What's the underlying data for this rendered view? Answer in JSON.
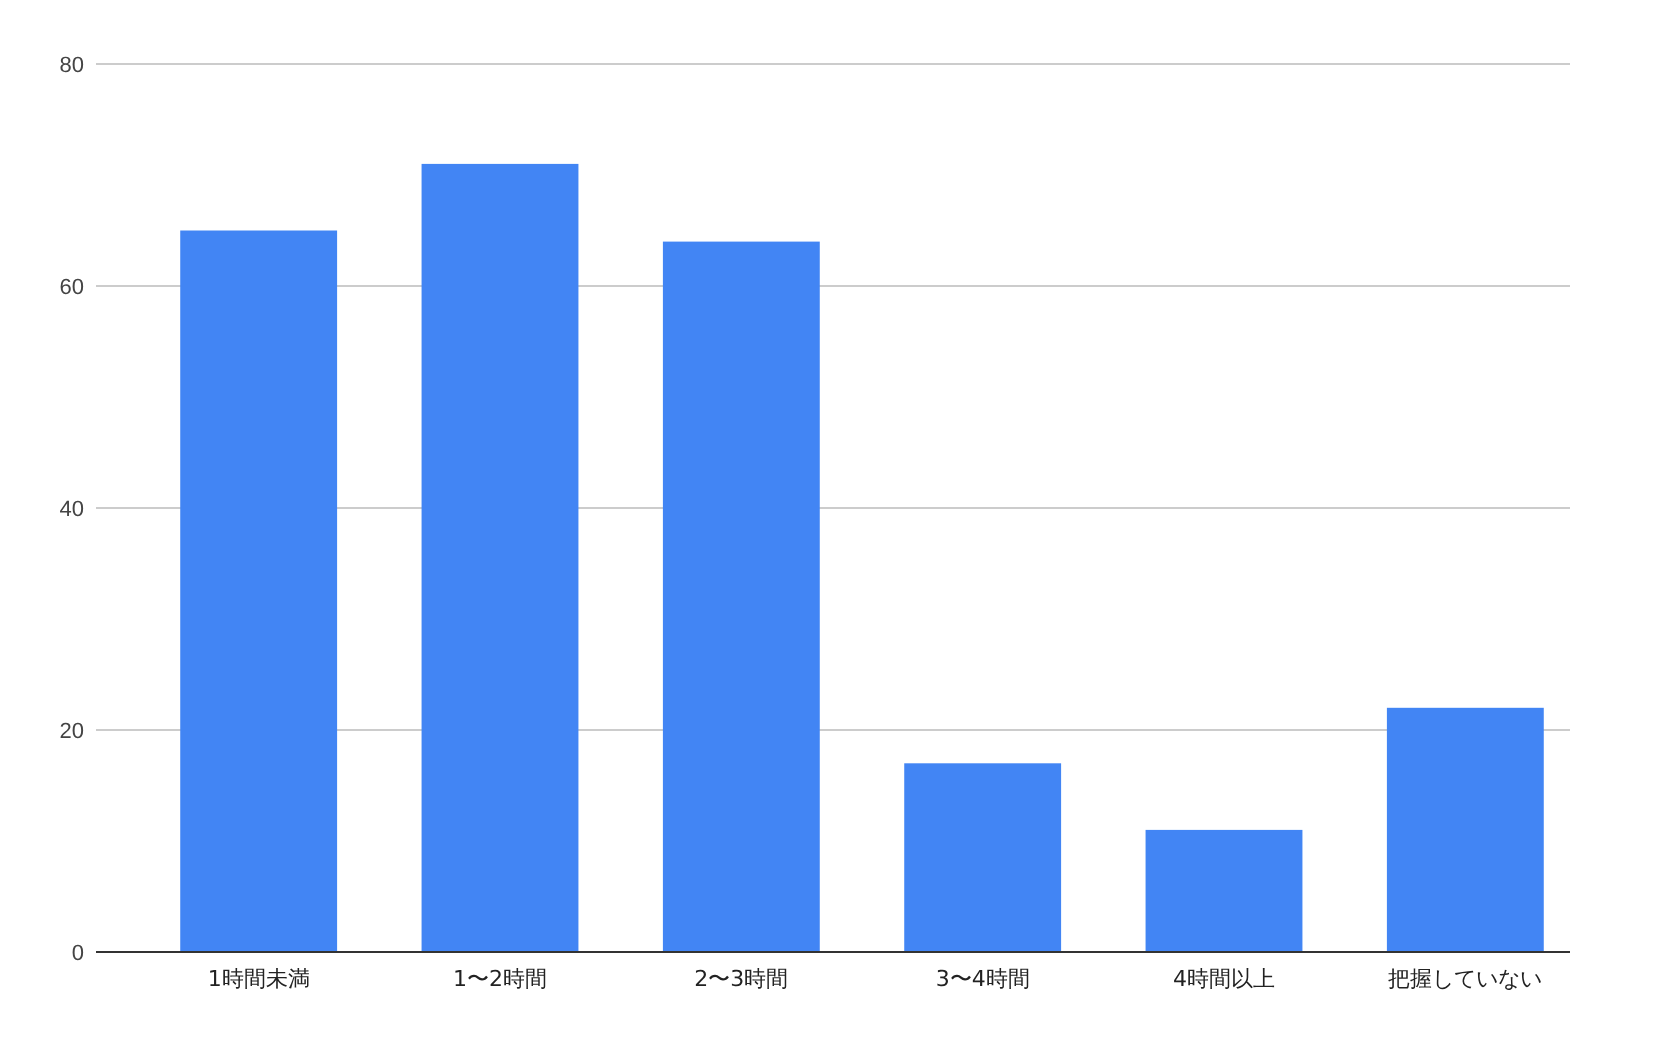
{
  "chart_data": {
    "type": "bar",
    "categories": [
      "1時間未満",
      "1〜2時間",
      "2〜3時間",
      "3〜4時間",
      "4時間以上",
      "把握していない"
    ],
    "values": [
      65,
      71,
      64,
      17,
      11,
      22
    ],
    "color": "#4285f4",
    "ylim": [
      0,
      80
    ],
    "yticks": [
      0,
      20,
      40,
      60,
      80
    ],
    "grid": "y"
  }
}
